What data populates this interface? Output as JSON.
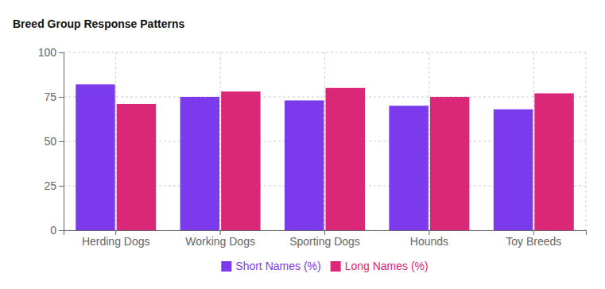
{
  "chart_data": {
    "type": "bar",
    "title": "Breed Group Response Patterns",
    "categories": [
      "Herding Dogs",
      "Working Dogs",
      "Sporting Dogs",
      "Hounds",
      "Toy Breeds"
    ],
    "series": [
      {
        "name": "Short Names (%)",
        "color": "#7c3aed",
        "values": [
          82,
          75,
          73,
          70,
          68
        ]
      },
      {
        "name": "Long Names (%)",
        "color": "#db2777",
        "values": [
          71,
          78,
          80,
          75,
          77
        ]
      }
    ],
    "ylim": [
      0,
      100
    ],
    "yticks": [
      0,
      25,
      50,
      75,
      100
    ],
    "grid": true,
    "legend": "bottom"
  }
}
